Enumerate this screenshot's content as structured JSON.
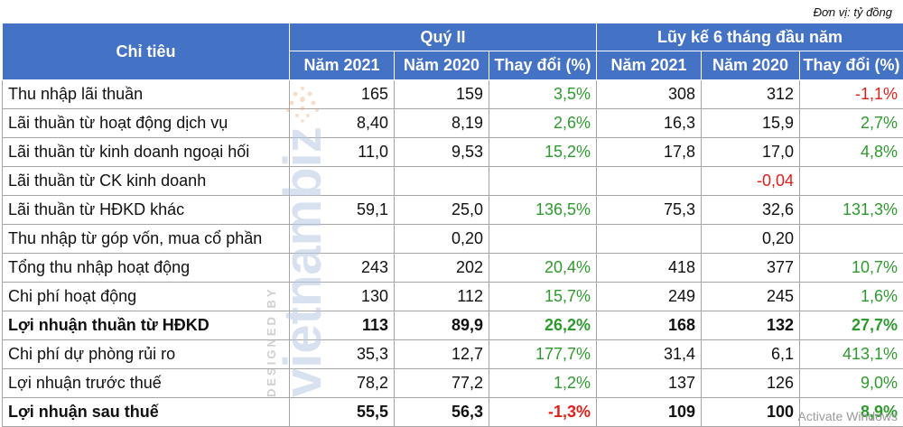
{
  "unit_label": "Đơn vị: tỷ đồng",
  "header": {
    "indicator": "Chỉ tiêu",
    "group_q2": "Quý II",
    "group_6m": "Lũy kế 6 tháng đầu năm",
    "cols": [
      "Năm 2021",
      "Năm 2020",
      "Thay đổi (%)",
      "Năm 2021",
      "Năm 2020",
      "Thay đổi (%)"
    ]
  },
  "rows": [
    {
      "label": "Thu nhập lãi thuần",
      "bold": false,
      "cells": [
        "165",
        "159",
        "3,5%",
        "308",
        "312",
        "-1,1%"
      ],
      "signs": [
        "",
        "",
        "pos",
        "",
        "",
        "neg"
      ]
    },
    {
      "label": "Lãi thuần từ hoạt động dịch vụ",
      "bold": false,
      "cells": [
        "8,40",
        "8,19",
        "2,6%",
        "16,3",
        "15,9",
        "2,7%"
      ],
      "signs": [
        "",
        "",
        "pos",
        "",
        "",
        "pos"
      ]
    },
    {
      "label": "Lãi thuần từ kinh doanh ngoại hối",
      "bold": false,
      "cells": [
        "11,0",
        "9,53",
        "15,2%",
        "17,8",
        "17,0",
        "4,8%"
      ],
      "signs": [
        "",
        "",
        "pos",
        "",
        "",
        "pos"
      ]
    },
    {
      "label": "Lãi thuần từ CK kinh doanh",
      "bold": false,
      "cells": [
        "",
        "",
        "",
        "",
        "-0,04",
        ""
      ],
      "signs": [
        "",
        "",
        "",
        "",
        "neg",
        ""
      ]
    },
    {
      "label": "Lãi thuần từ HĐKD khác",
      "bold": false,
      "cells": [
        "59,1",
        "25,0",
        "136,5%",
        "75,3",
        "32,6",
        "131,3%"
      ],
      "signs": [
        "",
        "",
        "pos",
        "",
        "",
        "pos"
      ]
    },
    {
      "label": "Thu nhập từ góp vốn, mua cổ phần",
      "bold": false,
      "cells": [
        "",
        "0,20",
        "",
        "",
        "0,20",
        ""
      ],
      "signs": [
        "",
        "",
        "",
        "",
        "",
        ""
      ]
    },
    {
      "label": "Tổng thu nhập hoạt động",
      "bold": false,
      "cells": [
        "243",
        "202",
        "20,4%",
        "418",
        "377",
        "10,7%"
      ],
      "signs": [
        "",
        "",
        "pos",
        "",
        "",
        "pos"
      ]
    },
    {
      "label": "Chi phí hoạt động",
      "bold": false,
      "cells": [
        "130",
        "112",
        "15,7%",
        "249",
        "245",
        "1,6%"
      ],
      "signs": [
        "",
        "",
        "pos",
        "",
        "",
        "pos"
      ]
    },
    {
      "label": "Lợi nhuận thuần từ HĐKD",
      "bold": true,
      "cells": [
        "113",
        "89,9",
        "26,2%",
        "168",
        "132",
        "27,7%"
      ],
      "signs": [
        "",
        "",
        "pos",
        "",
        "",
        "pos"
      ]
    },
    {
      "label": "Chi phí dự phòng rủi ro",
      "bold": false,
      "cells": [
        "35,3",
        "12,7",
        "177,7%",
        "31,4",
        "6,1",
        "413,1%"
      ],
      "signs": [
        "",
        "",
        "pos",
        "",
        "",
        "pos"
      ]
    },
    {
      "label": "Lợi nhuận trước thuế",
      "bold": false,
      "cells": [
        "78,2",
        "77,2",
        "1,2%",
        "137",
        "126",
        "9,0%"
      ],
      "signs": [
        "",
        "",
        "pos",
        "",
        "",
        "pos"
      ]
    },
    {
      "label": "Lợi nhuận sau thuế",
      "bold": true,
      "cells": [
        "55,5",
        "56,3",
        "-1,3%",
        "109",
        "100",
        "8,9%"
      ],
      "signs": [
        "",
        "",
        "neg",
        "",
        "",
        "pos"
      ]
    }
  ],
  "watermark": {
    "brand": "vietnambiz",
    "credit": "DESIGNED BY"
  },
  "os_overlay": "Activate Windows"
}
